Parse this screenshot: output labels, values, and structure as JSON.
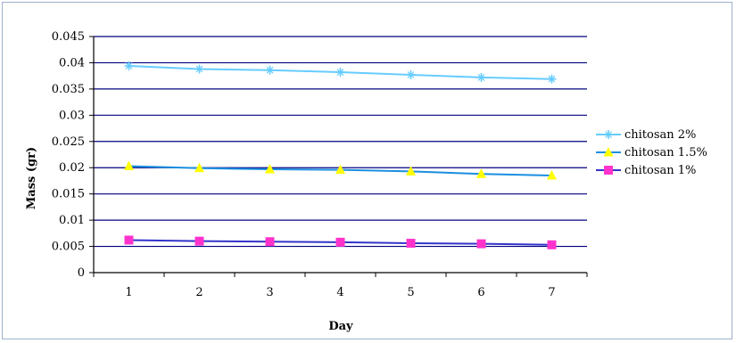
{
  "chart_data": {
    "type": "line",
    "title": "",
    "xlabel": "Day",
    "ylabel": "Mass (gr)",
    "categories": [
      "1",
      "2",
      "3",
      "4",
      "5",
      "6",
      "7"
    ],
    "ylim": [
      0,
      0.045
    ],
    "yticks": [
      "0",
      "0.005",
      "0.01",
      "0.015",
      "0.02",
      "0.025",
      "0.03",
      "0.035",
      "0.04",
      "0.045"
    ],
    "ytick_values": [
      0,
      0.005,
      0.01,
      0.015,
      0.02,
      0.025,
      0.03,
      0.035,
      0.04,
      0.045
    ],
    "grid": true,
    "legend": "right",
    "series": [
      {
        "name": "chitosan 2%",
        "values": [
          0.0394,
          0.0388,
          0.0386,
          0.0382,
          0.0377,
          0.0372,
          0.0369
        ],
        "line_color": "#66ccff",
        "marker_color": "#66ccff",
        "marker": "star"
      },
      {
        "name": "chitosan 1.5%",
        "values": [
          0.0203,
          0.0199,
          0.0197,
          0.0196,
          0.0193,
          0.0188,
          0.0185
        ],
        "line_color": "#1a8fe0",
        "marker_color": "#ffff00",
        "marker": "triangle"
      },
      {
        "name": "chitosan 1%",
        "values": [
          0.0062,
          0.006,
          0.0059,
          0.0058,
          0.0056,
          0.0055,
          0.0053
        ],
        "line_color": "#3333cc",
        "marker_color": "#ff33cc",
        "marker": "square"
      }
    ],
    "colors": {
      "grid": "#000080",
      "axis": "#000000",
      "frame": "#9fb1cc"
    }
  }
}
